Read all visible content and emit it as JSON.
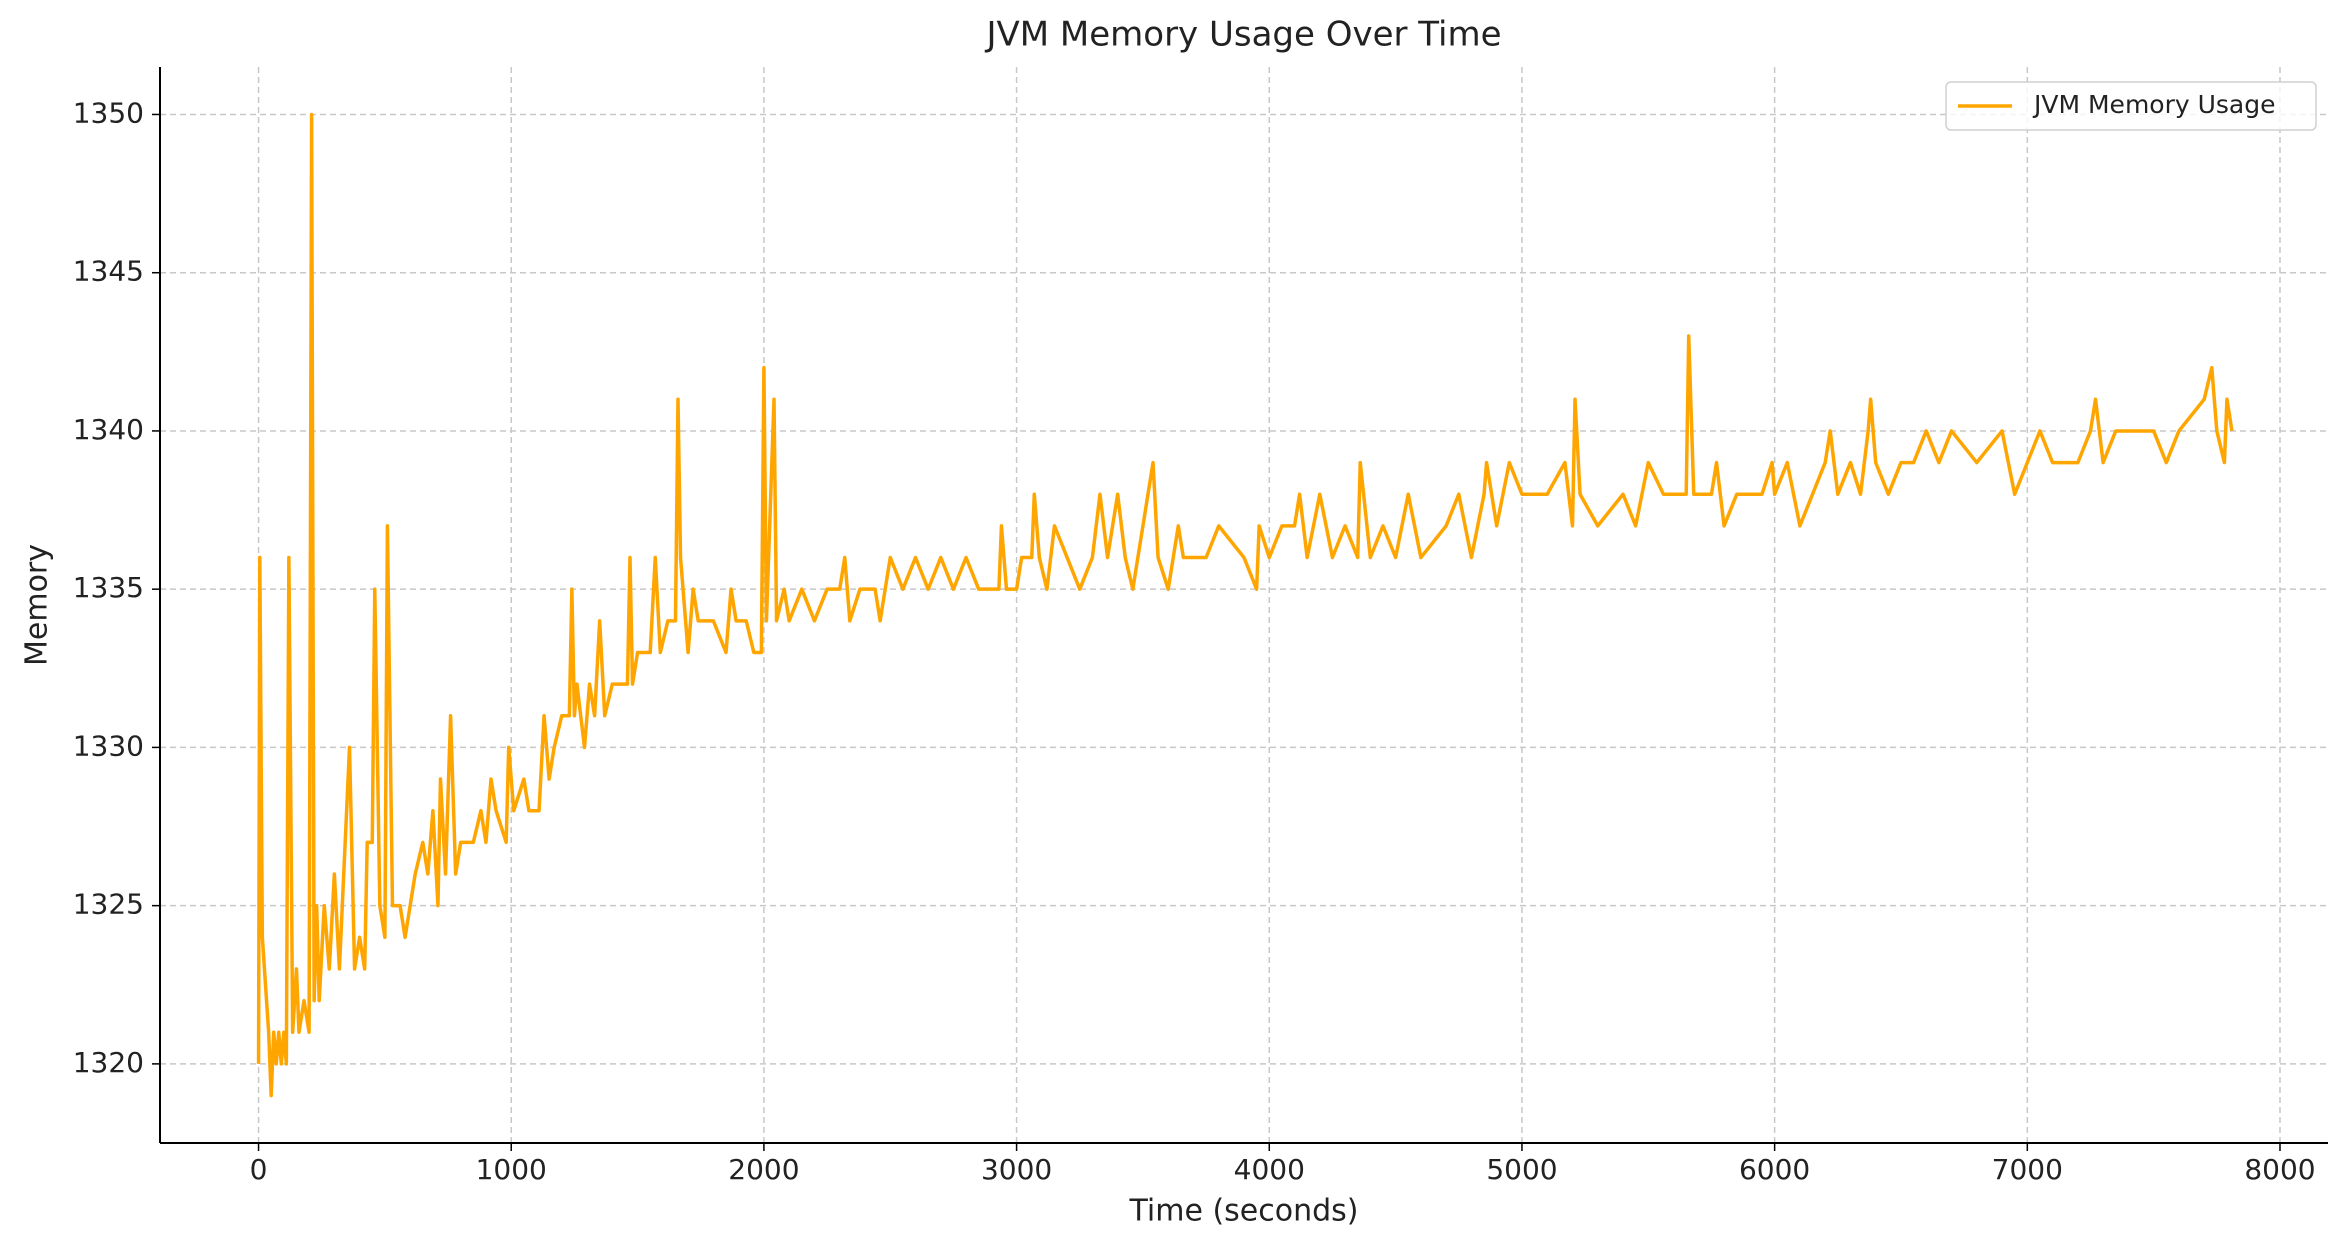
{
  "chart_data": {
    "type": "line",
    "title": "JVM Memory Usage Over Time",
    "x_label": "Time (seconds)",
    "y_label": "Memory",
    "x": [
      0,
      5,
      15,
      40,
      50,
      60,
      70,
      80,
      90,
      100,
      110,
      120,
      135,
      150,
      160,
      180,
      200,
      210,
      220,
      230,
      240,
      260,
      280,
      300,
      320,
      360,
      380,
      400,
      420,
      430,
      450,
      460,
      480,
      500,
      510,
      530,
      560,
      580,
      620,
      650,
      670,
      690,
      710,
      720,
      740,
      760,
      780,
      800,
      850,
      880,
      900,
      920,
      940,
      980,
      990,
      1010,
      1050,
      1070,
      1110,
      1130,
      1150,
      1170,
      1200,
      1230,
      1240,
      1250,
      1260,
      1290,
      1310,
      1330,
      1350,
      1370,
      1400,
      1460,
      1470,
      1480,
      1500,
      1550,
      1570,
      1590,
      1620,
      1650,
      1660,
      1670,
      1690,
      1700,
      1720,
      1740,
      1800,
      1850,
      1870,
      1890,
      1930,
      1960,
      1990,
      2000,
      2010,
      2040,
      2050,
      2080,
      2100,
      2150,
      2200,
      2250,
      2300,
      2320,
      2340,
      2380,
      2440,
      2460,
      2480,
      2500,
      2550,
      2600,
      2650,
      2700,
      2750,
      2800,
      2850,
      2930,
      2940,
      2960,
      3000,
      3020,
      3060,
      3070,
      3090,
      3120,
      3150,
      3200,
      3250,
      3300,
      3330,
      3360,
      3400,
      3430,
      3460,
      3520,
      3540,
      3560,
      3600,
      3640,
      3660,
      3750,
      3800,
      3900,
      3950,
      3960,
      4000,
      4050,
      4100,
      4120,
      4150,
      4200,
      4250,
      4300,
      4350,
      4360,
      4400,
      4450,
      4500,
      4550,
      4600,
      4700,
      4750,
      4800,
      4850,
      4860,
      4900,
      4950,
      5000,
      5050,
      5100,
      5170,
      5200,
      5210,
      5230,
      5300,
      5400,
      5450,
      5500,
      5560,
      5650,
      5660,
      5680,
      5750,
      5770,
      5800,
      5850,
      5950,
      5990,
      6000,
      6050,
      6100,
      6150,
      6200,
      6220,
      6250,
      6300,
      6340,
      6370,
      6380,
      6400,
      6450,
      6500,
      6550,
      6600,
      6650,
      6700,
      6800,
      6900,
      6950,
      7000,
      7050,
      7100,
      7200,
      7250,
      7270,
      7300,
      7350,
      7500,
      7550,
      7600,
      7700,
      7730,
      7750,
      7780,
      7790,
      7810
    ],
    "series": [
      {
        "name": "JVM Memory Usage",
        "color": "#ffa500",
        "values": [
          1320,
          1336,
          1324,
          1321,
          1319,
          1321,
          1320,
          1321,
          1320,
          1321,
          1320,
          1336,
          1321,
          1323,
          1321,
          1322,
          1321,
          1350,
          1322,
          1325,
          1322,
          1325,
          1323,
          1326,
          1323,
          1330,
          1323,
          1324,
          1323,
          1327,
          1327,
          1335,
          1325,
          1324,
          1337,
          1325,
          1325,
          1324,
          1326,
          1327,
          1326,
          1328,
          1325,
          1329,
          1326,
          1331,
          1326,
          1327,
          1327,
          1328,
          1327,
          1329,
          1328,
          1327,
          1330,
          1328,
          1329,
          1328,
          1328,
          1331,
          1329,
          1330,
          1331,
          1331,
          1335,
          1331,
          1332,
          1330,
          1332,
          1331,
          1334,
          1331,
          1332,
          1332,
          1336,
          1332,
          1333,
          1333,
          1336,
          1333,
          1334,
          1334,
          1341,
          1336,
          1334,
          1333,
          1335,
          1334,
          1334,
          1333,
          1335,
          1334,
          1334,
          1333,
          1333,
          1342,
          1334,
          1341,
          1334,
          1335,
          1334,
          1335,
          1334,
          1335,
          1335,
          1336,
          1334,
          1335,
          1335,
          1334,
          1335,
          1336,
          1335,
          1336,
          1335,
          1336,
          1335,
          1336,
          1335,
          1335,
          1337,
          1335,
          1335,
          1336,
          1336,
          1338,
          1336,
          1335,
          1337,
          1336,
          1335,
          1336,
          1338,
          1336,
          1338,
          1336,
          1335,
          1338,
          1339,
          1336,
          1335,
          1337,
          1336,
          1336,
          1337,
          1336,
          1335,
          1337,
          1336,
          1337,
          1337,
          1338,
          1336,
          1338,
          1336,
          1337,
          1336,
          1339,
          1336,
          1337,
          1336,
          1338,
          1336,
          1337,
          1338,
          1336,
          1338,
          1339,
          1337,
          1339,
          1338,
          1338,
          1338,
          1339,
          1337,
          1341,
          1338,
          1337,
          1338,
          1337,
          1339,
          1338,
          1338,
          1343,
          1338,
          1338,
          1339,
          1337,
          1338,
          1338,
          1339,
          1338,
          1339,
          1337,
          1338,
          1339,
          1340,
          1338,
          1339,
          1338,
          1340,
          1341,
          1339,
          1338,
          1339,
          1339,
          1340,
          1339,
          1340,
          1339,
          1340,
          1338,
          1339,
          1340,
          1339,
          1339,
          1340,
          1341,
          1339,
          1340,
          1340,
          1339,
          1340,
          1341,
          1342,
          1340,
          1339,
          1341,
          1340
        ]
      }
    ],
    "xlim": [
      -390,
      8190
    ],
    "ylim": [
      1317.5,
      1351.5
    ],
    "xticks": [
      0,
      1000,
      2000,
      3000,
      4000,
      5000,
      6000,
      7000,
      8000
    ],
    "yticks": [
      1320,
      1325,
      1330,
      1335,
      1340,
      1345,
      1350
    ],
    "grid": true,
    "legend": "upper right"
  }
}
